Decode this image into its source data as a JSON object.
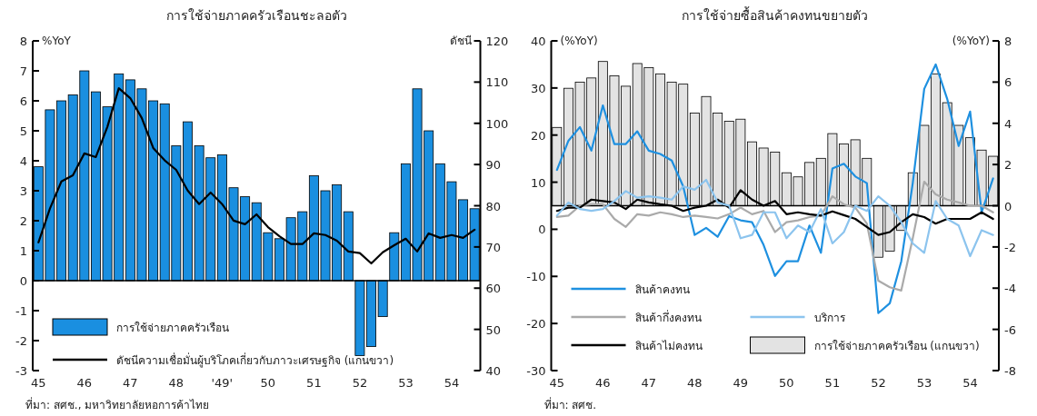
{
  "chart_data": [
    {
      "type": "bar",
      "title": "การใช้จ่ายภาคครัวเรือนชะลอตัว",
      "categories": [
        "45",
        null,
        null,
        null,
        "46",
        null,
        null,
        null,
        "47",
        null,
        null,
        null,
        "48",
        null,
        null,
        null,
        "'49'",
        null,
        null,
        null,
        "50",
        null,
        null,
        null,
        "51",
        null,
        null,
        null,
        "52",
        null,
        null,
        null,
        "53",
        null,
        null,
        null,
        "54",
        null,
        null
      ],
      "series": [
        {
          "name": "การใช้จ่ายภาคครัวเรือน",
          "color": "#1a8fe0",
          "values": [
            3.8,
            5.7,
            6.0,
            6.2,
            7.0,
            6.3,
            5.8,
            6.9,
            6.7,
            6.4,
            6.0,
            5.9,
            4.5,
            5.3,
            4.5,
            4.1,
            4.2,
            3.1,
            2.8,
            2.6,
            1.6,
            1.4,
            2.1,
            2.3,
            3.5,
            3.0,
            3.2,
            2.3,
            -2.5,
            -2.2,
            -1.2,
            1.6,
            3.9,
            6.4,
            5.0,
            3.9,
            3.3,
            2.7,
            2.4
          ]
        },
        {
          "name": "ดัชนีความเชื่อมั่นผู้บริโภคเกี่ยวกับภาวะเศรษฐกิจ (แกนขวา)",
          "type": "line",
          "axis": "y2",
          "color": "#000000",
          "values": [
            71.1,
            79.3,
            85.9,
            87.4,
            92.7,
            91.8,
            99.1,
            108.5,
            106.1,
            101.3,
            94.0,
            91.0,
            88.7,
            83.7,
            80.4,
            83.2,
            80.4,
            76.4,
            75.5,
            77.9,
            74.8,
            72.6,
            70.7,
            70.7,
            73.3,
            72.9,
            71.5,
            68.9,
            68.5,
            66.0,
            68.7,
            70.4,
            72.0,
            68.9,
            73.3,
            72.2,
            72.9,
            72.2,
            74.2
          ]
        }
      ],
      "ylabel": "%YoY",
      "y2label": "ดัชนี",
      "ylim": [
        -3,
        8
      ],
      "yticks": [
        -3,
        -2,
        -1,
        0,
        1,
        2,
        3,
        4,
        5,
        6,
        7,
        8
      ],
      "y2lim": [
        40,
        120
      ],
      "y2ticks": [
        40,
        50,
        60,
        70,
        80,
        90,
        100,
        110,
        120
      ],
      "ref_lines": [
        {
          "axis": "y",
          "value": 0
        }
      ],
      "legend": "bottom left",
      "annotations": [
        "ที่มา: สศช., มหาวิทยาลัยหอการค้าไทย"
      ]
    },
    {
      "type": "line",
      "title": "การใช้จ่ายซื้อสินค้าคงทนขยายตัว",
      "categories": [
        "45",
        null,
        null,
        null,
        "46",
        null,
        null,
        null,
        "47",
        null,
        null,
        null,
        "48",
        null,
        null,
        null,
        "49",
        null,
        null,
        null,
        "50",
        null,
        null,
        null,
        "51",
        null,
        null,
        null,
        "52",
        null,
        null,
        null,
        "53",
        null,
        null,
        null,
        "54",
        null,
        null
      ],
      "series": [
        {
          "name": "สินค้าคงทน",
          "color": "#1e90e0",
          "values": [
            12.6,
            18.8,
            21.7,
            16.7,
            26.3,
            18.1,
            18.1,
            20.8,
            16.7,
            16.0,
            14.6,
            9.1,
            -1.2,
            0.3,
            -1.6,
            2.8,
            1.9,
            1.5,
            -3.3,
            -9.9,
            -6.8,
            -6.8,
            0.8,
            -5.0,
            12.9,
            13.9,
            11.2,
            9.8,
            -17.8,
            -15.7,
            -6.8,
            9.8,
            29.8,
            35.0,
            27.7,
            17.7,
            25.0,
            3.6,
            10.8
          ]
        },
        {
          "name": "สินค้ากึ่งคงทน",
          "color": "#aaaaaa",
          "values": [
            2.6,
            2.9,
            5.0,
            5.3,
            5.3,
            2.2,
            0.5,
            3.2,
            2.9,
            3.6,
            3.2,
            2.6,
            2.9,
            2.6,
            2.3,
            3.2,
            4.6,
            3.2,
            3.9,
            -0.6,
            1.5,
            1.9,
            2.6,
            2.9,
            7.0,
            5.3,
            4.6,
            1.2,
            -10.9,
            -12.3,
            -13.0,
            -1.9,
            10.1,
            7.4,
            6.3,
            5.7,
            5.0,
            5.0,
            3.6
          ]
        },
        {
          "name": "สินค้าไม่คงทน",
          "color": "#000000",
          "values": [
            3.9,
            4.6,
            4.6,
            6.3,
            6.0,
            5.7,
            4.3,
            6.3,
            5.7,
            5.3,
            5.0,
            3.9,
            4.6,
            5.0,
            6.3,
            4.6,
            8.3,
            6.3,
            5.0,
            6.0,
            3.2,
            3.6,
            3.2,
            2.9,
            3.8,
            3.0,
            2.2,
            0.5,
            -1.2,
            -0.6,
            1.5,
            3.2,
            2.6,
            1.2,
            2.2,
            2.2,
            2.2,
            3.6,
            2.2
          ]
        },
        {
          "name": "บริการ",
          "color": "#8cc4ee",
          "values": [
            2.9,
            5.7,
            4.3,
            3.9,
            4.3,
            6.0,
            8.1,
            6.7,
            7.0,
            6.7,
            6.3,
            9.1,
            8.4,
            10.5,
            5.7,
            5.0,
            -1.9,
            -1.2,
            3.6,
            3.6,
            -1.9,
            0.8,
            -0.6,
            4.3,
            -3.0,
            -0.6,
            5.0,
            3.9,
            7.0,
            5.0,
            1.5,
            -3.0,
            -5.0,
            6.0,
            2.2,
            0.8,
            -5.7,
            -0.2,
            -1.2
          ]
        },
        {
          "name": "การใช้จ่ายภาคครัวเรือน (แกนขวา)",
          "type": "bar",
          "axis": "y2",
          "color": "#e3e3e3",
          "values": [
            3.8,
            5.7,
            6.0,
            6.2,
            7.0,
            6.3,
            5.8,
            6.9,
            6.7,
            6.4,
            6.0,
            5.9,
            4.5,
            5.3,
            4.5,
            4.1,
            4.2,
            3.1,
            2.8,
            2.6,
            1.6,
            1.4,
            2.1,
            2.3,
            3.5,
            3.0,
            3.2,
            2.3,
            -2.5,
            -2.2,
            -1.2,
            1.6,
            3.9,
            6.4,
            5.0,
            3.9,
            3.3,
            2.7,
            2.4
          ]
        }
      ],
      "ylabel": "(%YoY)",
      "y2label": "(%YoY)",
      "ylim": [
        -30,
        40
      ],
      "yticks": [
        -30,
        -20,
        -10,
        0,
        10,
        20,
        30,
        40
      ],
      "y2lim": [
        -8,
        8
      ],
      "y2ticks": [
        -8,
        -6,
        -4,
        -2,
        0,
        2,
        4,
        6,
        8
      ],
      "ref_lines": [
        {
          "axis": "y2",
          "value": 0
        }
      ],
      "legend": "bottom left",
      "annotations": [
        "ที่มา: สศช."
      ]
    }
  ]
}
